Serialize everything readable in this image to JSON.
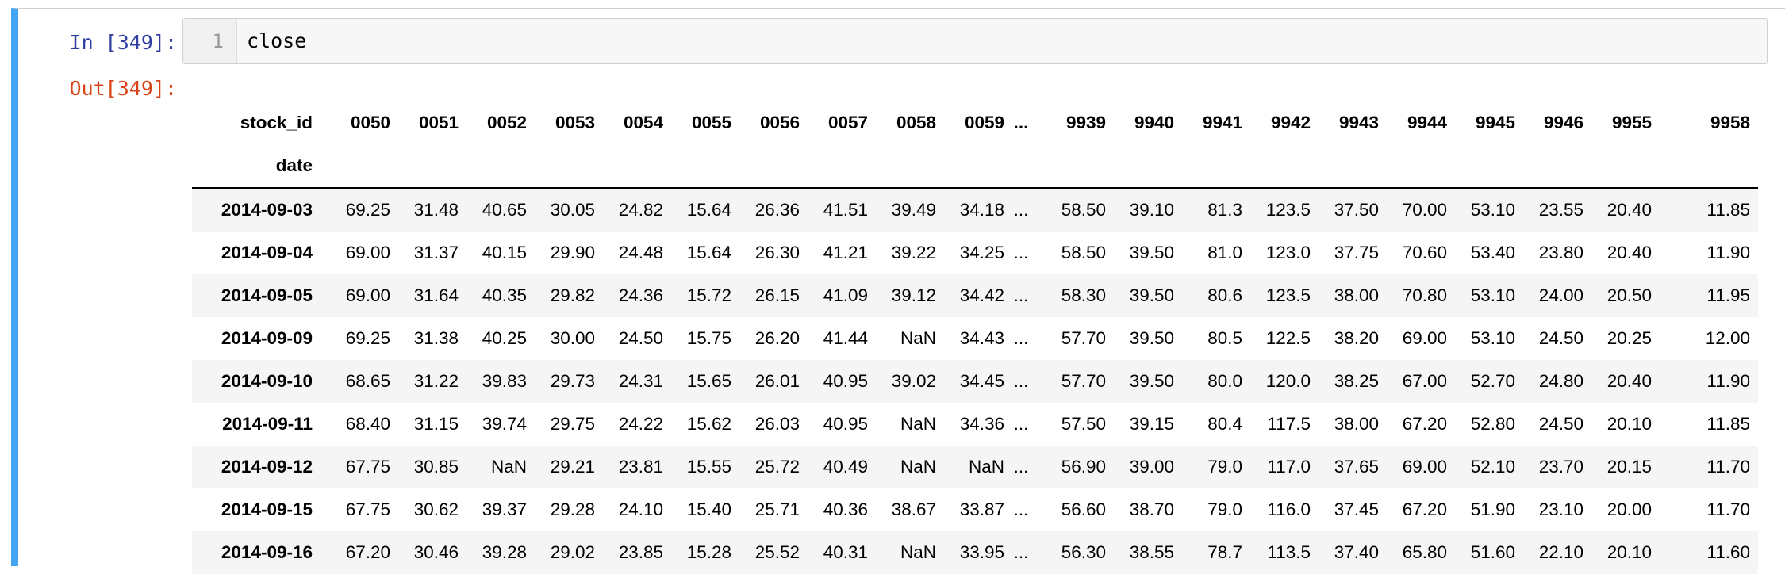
{
  "input_prompt": "In [349]:",
  "output_prompt": "Out[349]:",
  "editor": {
    "line_number": "1",
    "code": "close"
  },
  "dataframe": {
    "columns_name": "stock_id",
    "index_name": "date",
    "columns": [
      "0050",
      "0051",
      "0052",
      "0053",
      "0054",
      "0055",
      "0056",
      "0057",
      "0058",
      "0059",
      "...",
      "9939",
      "9940",
      "9941",
      "9942",
      "9943",
      "9944",
      "9945",
      "9946",
      "9955",
      "9958"
    ],
    "rows": [
      {
        "date": "2014-09-03",
        "values": [
          "69.25",
          "31.48",
          "40.65",
          "30.05",
          "24.82",
          "15.64",
          "26.36",
          "41.51",
          "39.49",
          "34.18",
          "...",
          "58.50",
          "39.10",
          "81.3",
          "123.5",
          "37.50",
          "70.00",
          "53.10",
          "23.55",
          "20.40",
          "11.85"
        ]
      },
      {
        "date": "2014-09-04",
        "values": [
          "69.00",
          "31.37",
          "40.15",
          "29.90",
          "24.48",
          "15.64",
          "26.30",
          "41.21",
          "39.22",
          "34.25",
          "...",
          "58.50",
          "39.50",
          "81.0",
          "123.0",
          "37.75",
          "70.60",
          "53.40",
          "23.80",
          "20.40",
          "11.90"
        ]
      },
      {
        "date": "2014-09-05",
        "values": [
          "69.00",
          "31.64",
          "40.35",
          "29.82",
          "24.36",
          "15.72",
          "26.15",
          "41.09",
          "39.12",
          "34.42",
          "...",
          "58.30",
          "39.50",
          "80.6",
          "123.5",
          "38.00",
          "70.80",
          "53.10",
          "24.00",
          "20.50",
          "11.95"
        ]
      },
      {
        "date": "2014-09-09",
        "values": [
          "69.25",
          "31.38",
          "40.25",
          "30.00",
          "24.50",
          "15.75",
          "26.20",
          "41.44",
          "NaN",
          "34.43",
          "...",
          "57.70",
          "39.50",
          "80.5",
          "122.5",
          "38.20",
          "69.00",
          "53.10",
          "24.50",
          "20.25",
          "12.00"
        ]
      },
      {
        "date": "2014-09-10",
        "values": [
          "68.65",
          "31.22",
          "39.83",
          "29.73",
          "24.31",
          "15.65",
          "26.01",
          "40.95",
          "39.02",
          "34.45",
          "...",
          "57.70",
          "39.50",
          "80.0",
          "120.0",
          "38.25",
          "67.00",
          "52.70",
          "24.80",
          "20.40",
          "11.90"
        ]
      },
      {
        "date": "2014-09-11",
        "values": [
          "68.40",
          "31.15",
          "39.74",
          "29.75",
          "24.22",
          "15.62",
          "26.03",
          "40.95",
          "NaN",
          "34.36",
          "...",
          "57.50",
          "39.15",
          "80.4",
          "117.5",
          "38.00",
          "67.20",
          "52.80",
          "24.50",
          "20.10",
          "11.85"
        ]
      },
      {
        "date": "2014-09-12",
        "values": [
          "67.75",
          "30.85",
          "NaN",
          "29.21",
          "23.81",
          "15.55",
          "25.72",
          "40.49",
          "NaN",
          "NaN",
          "...",
          "56.90",
          "39.00",
          "79.0",
          "117.0",
          "37.65",
          "69.00",
          "52.10",
          "23.70",
          "20.15",
          "11.70"
        ]
      },
      {
        "date": "2014-09-15",
        "values": [
          "67.75",
          "30.62",
          "39.37",
          "29.28",
          "24.10",
          "15.40",
          "25.71",
          "40.36",
          "38.67",
          "33.87",
          "...",
          "56.60",
          "38.70",
          "79.0",
          "116.0",
          "37.45",
          "67.20",
          "51.90",
          "23.10",
          "20.00",
          "11.70"
        ]
      },
      {
        "date": "2014-09-16",
        "values": [
          "67.20",
          "30.46",
          "39.28",
          "29.02",
          "23.85",
          "15.28",
          "25.52",
          "40.31",
          "NaN",
          "33.95",
          "...",
          "56.30",
          "38.55",
          "78.7",
          "113.5",
          "37.40",
          "65.80",
          "51.60",
          "22.10",
          "20.10",
          "11.60"
        ]
      }
    ]
  },
  "colors": {
    "selected_cell_bar": "#42a5f5",
    "input_prompt": "#303f9f",
    "output_prompt": "#d84315",
    "striped_row": "#f5f5f5"
  }
}
